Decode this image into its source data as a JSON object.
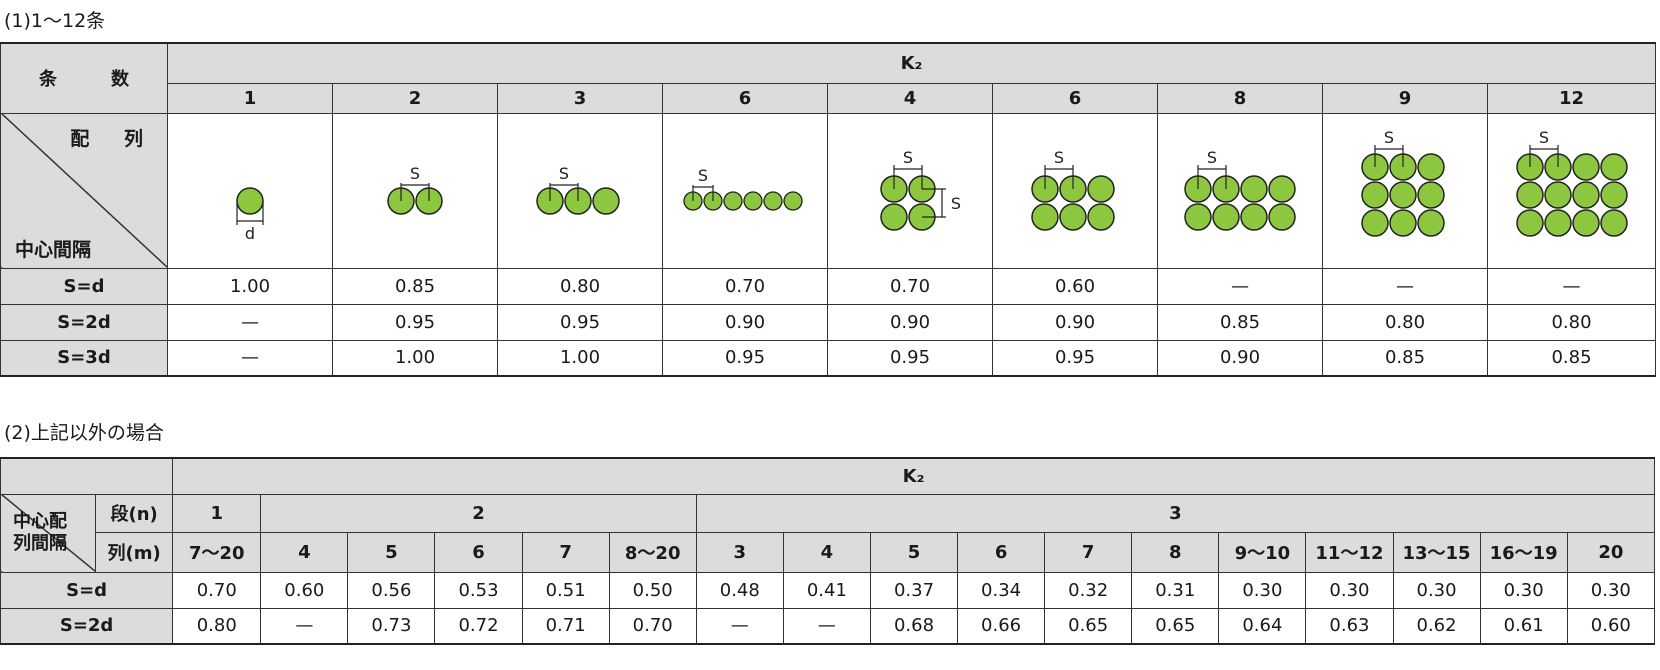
{
  "section1": {
    "heading": "(1)1～12条",
    "col_label": "条　数",
    "k2": "K₂",
    "counts": [
      "1",
      "2",
      "3",
      "6",
      "4",
      "6",
      "8",
      "9",
      "12"
    ],
    "corner_top": "配 列",
    "corner_bottom": "中心間隔",
    "s_label": "S",
    "d_label": "d",
    "rows": [
      {
        "label": "S=d",
        "values": [
          "1.00",
          "0.85",
          "0.80",
          "0.70",
          "0.70",
          "0.60",
          "—",
          "—",
          "—"
        ]
      },
      {
        "label": "S=2d",
        "values": [
          "—",
          "0.95",
          "0.95",
          "0.90",
          "0.90",
          "0.90",
          "0.85",
          "0.80",
          "0.80"
        ]
      },
      {
        "label": "S=3d",
        "values": [
          "—",
          "1.00",
          "1.00",
          "0.95",
          "0.95",
          "0.95",
          "0.90",
          "0.85",
          "0.85"
        ]
      }
    ],
    "circle_color": "#8dc63f"
  },
  "section2": {
    "heading": "(2)上記以外の場合",
    "k2": "K₂",
    "corner_left": "中心配列間隔",
    "dan_label": "段(n)",
    "retsu_label": "列(m)",
    "dan": [
      "1",
      "2",
      "3"
    ],
    "retsu": [
      "7～20",
      "4",
      "5",
      "6",
      "7",
      "8～20",
      "3",
      "4",
      "5",
      "6",
      "7",
      "8",
      "9～10",
      "11～12",
      "13～15",
      "16～19",
      "20"
    ],
    "rows": [
      {
        "label": "S=d",
        "values": [
          "0.70",
          "0.60",
          "0.56",
          "0.53",
          "0.51",
          "0.50",
          "0.48",
          "0.41",
          "0.37",
          "0.34",
          "0.32",
          "0.31",
          "0.30",
          "0.30",
          "0.30",
          "0.30",
          "0.30"
        ]
      },
      {
        "label": "S=2d",
        "values": [
          "0.80",
          "—",
          "0.73",
          "0.72",
          "0.71",
          "0.70",
          "—",
          "—",
          "0.68",
          "0.66",
          "0.65",
          "0.65",
          "0.64",
          "0.63",
          "0.62",
          "0.61",
          "0.60"
        ]
      }
    ]
  }
}
